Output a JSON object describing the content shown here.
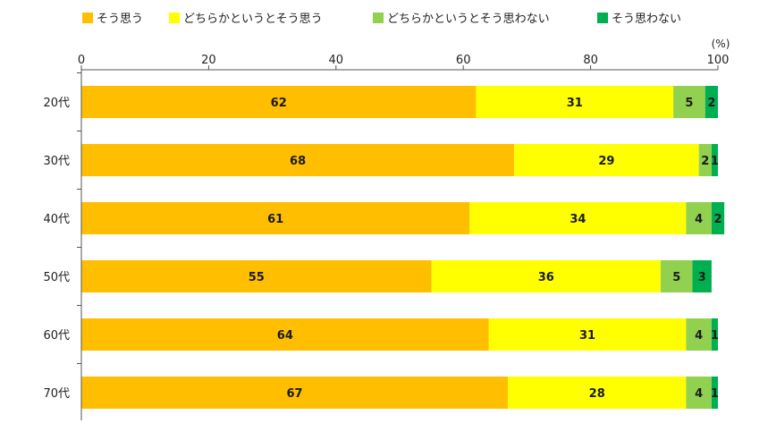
{
  "chart_data": {
    "type": "bar",
    "orientation": "horizontal",
    "stacked": true,
    "unit_label": "(%)",
    "categories": [
      "20代",
      "30代",
      "40代",
      "50代",
      "60代",
      "70代"
    ],
    "series": [
      {
        "name": "そう思う",
        "color": "#FFBF00",
        "values": [
          62,
          68,
          61,
          55,
          64,
          67
        ]
      },
      {
        "name": "どちらかというとそう思う",
        "color": "#FFFF00",
        "values": [
          31,
          29,
          34,
          36,
          31,
          28
        ]
      },
      {
        "name": "どちらかというとそう思わない",
        "color": "#92D050",
        "values": [
          5,
          2,
          4,
          5,
          4,
          4
        ]
      },
      {
        "name": "そう思わない",
        "color": "#00B050",
        "values": [
          2,
          1,
          2,
          3,
          1,
          1
        ]
      }
    ],
    "xlim": [
      0,
      100
    ],
    "xticks": [
      0,
      20,
      40,
      60,
      80,
      100
    ],
    "legend_position": "top",
    "grid": false
  }
}
